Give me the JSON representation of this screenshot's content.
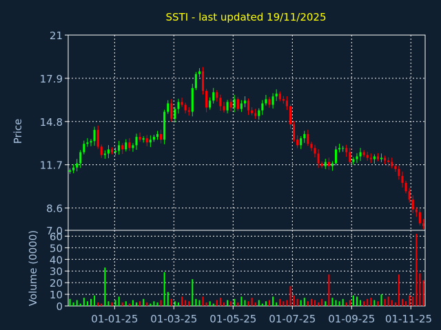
{
  "chart_data": [
    {
      "type": "line",
      "title": "SSTI - last updated 19/11/2025",
      "ylabel": "Price",
      "xlabel": "",
      "ylim": [
        7.0,
        21.0
      ],
      "yticks": [
        "21",
        "17.9",
        "14.8",
        "11.7",
        "8.6",
        "7.0"
      ],
      "ytick_values": [
        21.0,
        17.9,
        14.8,
        11.7,
        8.6,
        7.0
      ],
      "xticks": [
        "01-01-25",
        "01-03-25",
        "01-05-25",
        "01-07-25",
        "01-09-25",
        "01-11-25"
      ],
      "grid": true,
      "style": "candlestick",
      "colors": {
        "up": "#00ff00",
        "down": "#ff0000",
        "title": "#ffff00",
        "axis_text": "#a9c3df",
        "background": "#0f1f2f",
        "grid": "#ffffff"
      },
      "series": [
        {
          "values": [
            11.3,
            11.5,
            11.8,
            12.6,
            13.2,
            13.3,
            13.4,
            14.2,
            13.0,
            12.4,
            12.5,
            12.8,
            12.6,
            12.7,
            13.1,
            12.8,
            13.3,
            12.9,
            13.1,
            13.7,
            13.5,
            13.6,
            13.3,
            13.5,
            13.7,
            13.9,
            13.5,
            15.5,
            16.1,
            15.0,
            15.7,
            16.2,
            16.0,
            15.6,
            15.5,
            17.2,
            18.2,
            18.4,
            17.0,
            15.8,
            16.3,
            16.9,
            16.5,
            15.9,
            15.6,
            16.2,
            15.8,
            16.4,
            15.7,
            16.1,
            16.3,
            15.6,
            15.4,
            15.2,
            15.6,
            16.1,
            16.4,
            16.0,
            16.6,
            16.8,
            16.4,
            16.3,
            15.9,
            14.6,
            13.5,
            13.1,
            13.6,
            13.9,
            13.2,
            12.9,
            12.5,
            11.8,
            11.6,
            11.9,
            11.6,
            11.8,
            12.8,
            12.9,
            12.9,
            12.6,
            11.9,
            12.1,
            12.3,
            12.6,
            12.4,
            12.2,
            12.1,
            12.3,
            12.1,
            12.2,
            12.0,
            11.9,
            11.6,
            11.4,
            10.9,
            10.4,
            9.8,
            9.2,
            8.5,
            8.3,
            7.5,
            7.3
          ]
        }
      ]
    },
    {
      "type": "bar",
      "ylabel": "Volume (0000)",
      "xlabel": "",
      "ylim": [
        0,
        65
      ],
      "yticks": [
        "60",
        "50",
        "40",
        "30",
        "20",
        "10",
        "0"
      ],
      "ytick_values": [
        60,
        50,
        40,
        30,
        20,
        10,
        0
      ],
      "xticks": [
        "01-01-25",
        "01-03-25",
        "01-05-25",
        "01-07-25",
        "01-09-25",
        "01-11-25"
      ],
      "grid": true,
      "series": [
        {
          "values": [
            6,
            3,
            5,
            2,
            7,
            4,
            6,
            9,
            3,
            2,
            33,
            4,
            3,
            5,
            8,
            3,
            4,
            2,
            5,
            3,
            4,
            6,
            3,
            2,
            4,
            3,
            5,
            29,
            12,
            6,
            4,
            3,
            8,
            5,
            4,
            23,
            6,
            5,
            8,
            3,
            4,
            2,
            5,
            7,
            3,
            5,
            4,
            6,
            3,
            8,
            5,
            4,
            7,
            3,
            5,
            2,
            4,
            5,
            8,
            3,
            6,
            4,
            5,
            17,
            9,
            6,
            5,
            7,
            4,
            6,
            5,
            3,
            6,
            4,
            27,
            7,
            5,
            4,
            6,
            3,
            5,
            9,
            8,
            5,
            4,
            6,
            7,
            5,
            4,
            10,
            6,
            8,
            5,
            3,
            27,
            6,
            4,
            9,
            8,
            62,
            28,
            22
          ]
        }
      ]
    }
  ]
}
